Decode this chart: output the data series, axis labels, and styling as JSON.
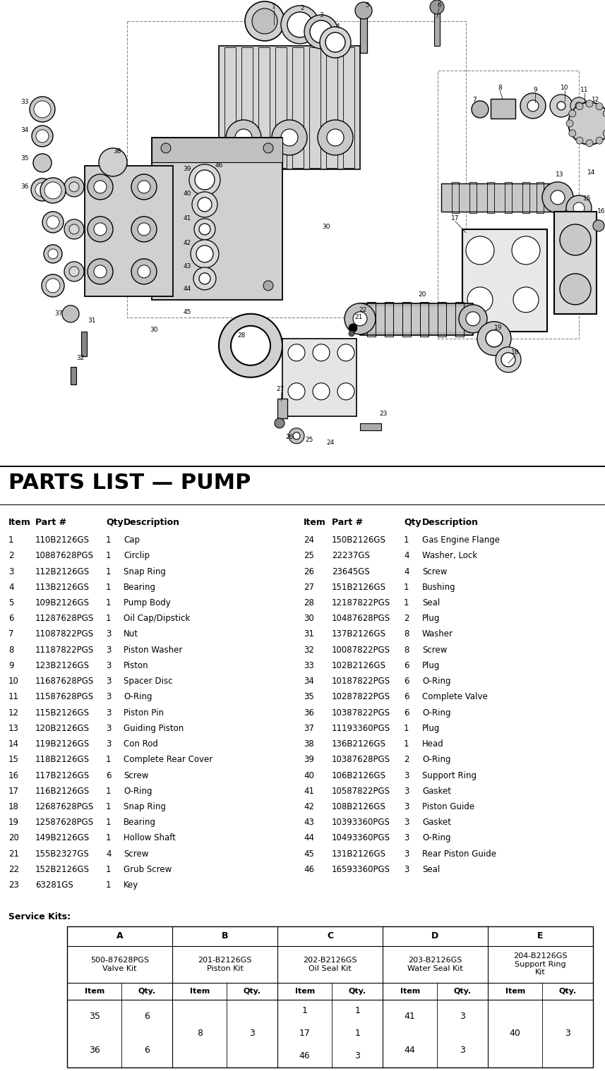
{
  "title": "PARTS LIST — PUMP",
  "bg_color": "#ffffff",
  "parts_left": [
    [
      1,
      "110B2126GS",
      "1",
      "Cap"
    ],
    [
      2,
      "10887628PGS",
      "1",
      "Circlip"
    ],
    [
      3,
      "112B2126GS",
      "1",
      "Snap Ring"
    ],
    [
      4,
      "113B2126GS",
      "1",
      "Bearing"
    ],
    [
      5,
      "109B2126GS",
      "1",
      "Pump Body"
    ],
    [
      6,
      "11287628PGS",
      "1",
      "Oil Cap/Dipstick"
    ],
    [
      7,
      "11087822PGS",
      "3",
      "Nut"
    ],
    [
      8,
      "11187822PGS",
      "3",
      "Piston Washer"
    ],
    [
      9,
      "123B2126GS",
      "3",
      "Piston"
    ],
    [
      10,
      "11687628PGS",
      "3",
      "Spacer Disc"
    ],
    [
      11,
      "11587628PGS",
      "3",
      "O-Ring"
    ],
    [
      12,
      "115B2126GS",
      "3",
      "Piston Pin"
    ],
    [
      13,
      "120B2126GS",
      "3",
      "Guiding Piston"
    ],
    [
      14,
      "119B2126GS",
      "3",
      "Con Rod"
    ],
    [
      15,
      "118B2126GS",
      "1",
      "Complete Rear Cover"
    ],
    [
      16,
      "117B2126GS",
      "6",
      "Screw"
    ],
    [
      17,
      "116B2126GS",
      "1",
      "O-Ring"
    ],
    [
      18,
      "12687628PGS",
      "1",
      "Snap Ring"
    ],
    [
      19,
      "12587628PGS",
      "1",
      "Bearing"
    ],
    [
      20,
      "149B2126GS",
      "1",
      "Hollow Shaft"
    ],
    [
      21,
      "155B2327GS",
      "4",
      "Screw"
    ],
    [
      22,
      "152B2126GS",
      "1",
      "Grub Screw"
    ],
    [
      23,
      "63281GS",
      "1",
      "Key"
    ]
  ],
  "parts_right": [
    [
      24,
      "150B2126GS",
      "1",
      "Gas Engine Flange"
    ],
    [
      25,
      "22237GS",
      "4",
      "Washer, Lock"
    ],
    [
      26,
      "23645GS",
      "4",
      "Screw"
    ],
    [
      27,
      "151B2126GS",
      "1",
      "Bushing"
    ],
    [
      28,
      "12187822PGS",
      "1",
      "Seal"
    ],
    [
      30,
      "10487628PGS",
      "2",
      "Plug"
    ],
    [
      31,
      "137B2126GS",
      "8",
      "Washer"
    ],
    [
      32,
      "10087822PGS",
      "8",
      "Screw"
    ],
    [
      33,
      "102B2126GS",
      "6",
      "Plug"
    ],
    [
      34,
      "10187822PGS",
      "6",
      "O-Ring"
    ],
    [
      35,
      "10287822PGS",
      "6",
      "Complete Valve"
    ],
    [
      36,
      "10387822PGS",
      "6",
      "O-Ring"
    ],
    [
      37,
      "11193360PGS",
      "1",
      "Plug"
    ],
    [
      38,
      "136B2126GS",
      "1",
      "Head"
    ],
    [
      39,
      "10387628PGS",
      "2",
      "O-Ring"
    ],
    [
      40,
      "106B2126GS",
      "3",
      "Support Ring"
    ],
    [
      41,
      "10587822PGS",
      "3",
      "Gasket"
    ],
    [
      42,
      "108B2126GS",
      "3",
      "Piston Guide"
    ],
    [
      43,
      "10393360PGS",
      "3",
      "Gasket"
    ],
    [
      44,
      "10493360PGS",
      "3",
      "O-Ring"
    ],
    [
      45,
      "131B2126GS",
      "3",
      "Rear Piston Guide"
    ],
    [
      46,
      "16593360PGS",
      "3",
      "Seal"
    ]
  ],
  "service_kits": {
    "headers": [
      "A",
      "B",
      "C",
      "D",
      "E"
    ],
    "kit_names": [
      "500-87628PGS\nValve Kit",
      "201-B2126GS\nPiston Kit",
      "202-B2126GS\nOil Seal Kit",
      "203-B2126GS\nWater Seal Kit",
      "204-B2126GS\nSupport Ring\nKit"
    ],
    "items_A": [
      "35",
      "36"
    ],
    "qtys_A": [
      "6",
      "6"
    ],
    "items_B": [
      "8"
    ],
    "qtys_B": [
      "3"
    ],
    "items_C": [
      "1",
      "17",
      "46"
    ],
    "qtys_C": [
      "1",
      "1",
      "3"
    ],
    "items_D": [
      "41",
      "44"
    ],
    "qtys_D": [
      "3",
      "3"
    ],
    "items_E": [
      "40"
    ],
    "qtys_E": [
      "3"
    ]
  }
}
